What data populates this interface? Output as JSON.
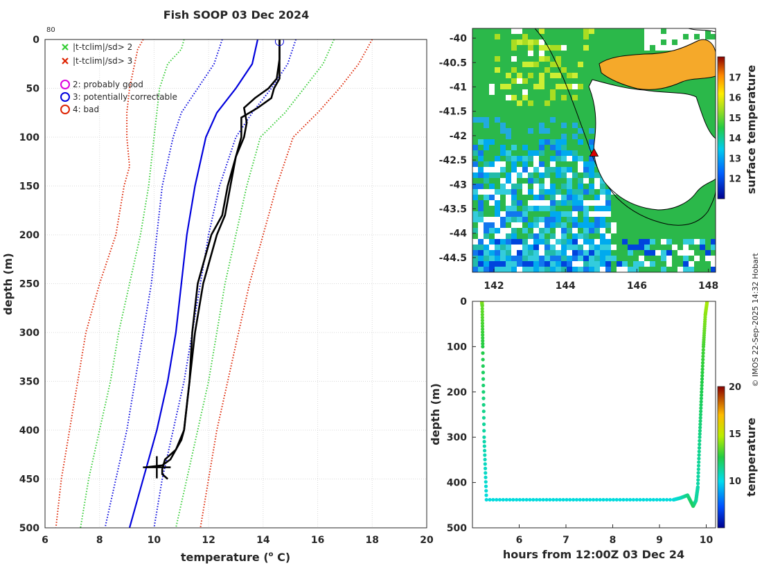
{
  "title": "Fish SOOP 03 Dec 2024",
  "footer": "© IMOS 22-Sep-2025 14:32 Hobart",
  "colors": {
    "green": "#33cc33",
    "red": "#dd2200",
    "blue": "#0000dd",
    "magenta": "#dd00dd",
    "profile": "#000000"
  },
  "chart_data": [
    {
      "id": "profile",
      "type": "line",
      "title": "Fish SOOP 03 Dec 2024",
      "xlabel": "temperature (",
      "xlabel_sup": "o",
      "xlabel_tail": " C)",
      "ylabel": "depth (m)",
      "xlim": [
        6,
        20
      ],
      "ylim": [
        0,
        500
      ],
      "ydir": "reverse",
      "xticks": [
        6,
        8,
        10,
        12,
        14,
        16,
        18,
        20
      ],
      "yticks": [
        0,
        50,
        100,
        150,
        200,
        250,
        300,
        350,
        400,
        450,
        500
      ],
      "grid": true,
      "corner_label": "80",
      "legend": [
        {
          "symbol": "x",
          "color": "green",
          "label": "|t-tclim|/sd> 2"
        },
        {
          "symbol": "x",
          "color": "red",
          "label": "|t-tclim|/sd> 3"
        },
        {
          "symbol": "o",
          "color": "magenta",
          "label": "2: probably good"
        },
        {
          "symbol": "o",
          "color": "blue",
          "label": "3: potentially correctable"
        },
        {
          "symbol": "o",
          "color": "red",
          "label": "4: bad"
        }
      ],
      "series": [
        {
          "name": "clim_mean",
          "style": "solid",
          "color": "blue",
          "depth": [
            0,
            25,
            50,
            75,
            100,
            150,
            200,
            250,
            300,
            350,
            400,
            430,
            450,
            500
          ],
          "temp": [
            13.8,
            13.6,
            13.0,
            12.3,
            11.9,
            11.5,
            11.2,
            11.0,
            10.8,
            10.5,
            10.1,
            9.8,
            9.6,
            9.1
          ]
        },
        {
          "name": "clim_plus1sd",
          "style": "dotted",
          "color": "blue",
          "depth": [
            0,
            25,
            50,
            75,
            100,
            150,
            200,
            250,
            300,
            350,
            400,
            450,
            500
          ],
          "temp": [
            15.2,
            14.9,
            14.3,
            13.6,
            13.0,
            12.4,
            12.0,
            11.7,
            11.4,
            11.1,
            10.7,
            10.3,
            10.0
          ]
        },
        {
          "name": "clim_minus1sd",
          "style": "dotted",
          "color": "blue",
          "depth": [
            0,
            25,
            50,
            75,
            100,
            150,
            200,
            250,
            300,
            350,
            400,
            450,
            500
          ],
          "temp": [
            12.5,
            12.2,
            11.6,
            11.0,
            10.7,
            10.3,
            10.1,
            9.9,
            9.6,
            9.3,
            9.0,
            8.6,
            8.2
          ]
        },
        {
          "name": "clim_plus2sd",
          "style": "dotted",
          "color": "green",
          "depth": [
            0,
            25,
            50,
            75,
            100,
            150,
            200,
            250,
            300,
            350,
            400,
            450,
            500
          ],
          "temp": [
            16.6,
            16.2,
            15.5,
            14.8,
            13.9,
            13.4,
            13.0,
            12.6,
            12.3,
            12.0,
            11.6,
            11.2,
            10.8
          ]
        },
        {
          "name": "clim_minus2sd",
          "style": "dotted",
          "color": "green",
          "depth": [
            0,
            10,
            25,
            50,
            75,
            100,
            150,
            200,
            250,
            300,
            350,
            400,
            450,
            500
          ],
          "temp": [
            11.1,
            11.0,
            10.5,
            10.2,
            10.1,
            10.0,
            9.8,
            9.5,
            9.1,
            8.7,
            8.4,
            8.0,
            7.6,
            7.3
          ]
        },
        {
          "name": "clim_plus3sd",
          "style": "dotted",
          "color": "red",
          "depth": [
            0,
            25,
            50,
            75,
            100,
            150,
            200,
            250,
            300,
            350,
            400,
            450,
            500
          ],
          "temp": [
            18.0,
            17.5,
            16.8,
            16.0,
            15.1,
            14.5,
            14.0,
            13.5,
            13.1,
            12.7,
            12.3,
            12.0,
            11.7
          ]
        },
        {
          "name": "clim_minus3sd",
          "style": "dotted",
          "color": "red",
          "depth": [
            0,
            10,
            50,
            75,
            100,
            130,
            150,
            200,
            250,
            300,
            350,
            400,
            450,
            500
          ],
          "temp": [
            9.6,
            9.4,
            9.1,
            9.0,
            9.0,
            9.1,
            8.9,
            8.6,
            8.0,
            7.5,
            7.2,
            6.9,
            6.6,
            6.4
          ]
        },
        {
          "name": "profile_down",
          "style": "solid",
          "color": "profile",
          "depth": [
            0,
            20,
            40,
            50,
            60,
            70,
            85,
            100,
            120,
            150,
            180,
            200,
            250,
            300,
            350,
            400,
            420,
            430,
            440,
            445,
            450
          ],
          "temp": [
            14.6,
            14.6,
            14.5,
            14.2,
            13.7,
            13.3,
            13.4,
            13.3,
            13.0,
            12.8,
            12.6,
            12.3,
            11.8,
            11.5,
            11.3,
            11.1,
            10.8,
            10.4,
            10.3,
            10.3,
            10.5
          ]
        },
        {
          "name": "profile_up",
          "style": "solid",
          "color": "profile",
          "depth": [
            438,
            436,
            430,
            410,
            400,
            350,
            300,
            250,
            200,
            180,
            150,
            120,
            100,
            80,
            75,
            70,
            60,
            50,
            40,
            20,
            0
          ],
          "temp": [
            9.7,
            10.3,
            10.6,
            11.0,
            11.1,
            11.3,
            11.4,
            11.6,
            12.1,
            12.5,
            12.7,
            13.0,
            13.2,
            13.2,
            13.5,
            13.8,
            14.3,
            14.4,
            14.6,
            14.6,
            14.6
          ]
        }
      ],
      "flag_circle": {
        "temp": 14.6,
        "depth": 2,
        "color": "blue"
      },
      "end_marker": {
        "temp": 10.1,
        "depth": 438
      }
    },
    {
      "id": "map",
      "type": "heatmap",
      "xlim": [
        141.4,
        148.2
      ],
      "ylim": [
        -44.8,
        -39.8
      ],
      "xticks": [
        142,
        144,
        146,
        148
      ],
      "yticks": [
        -40,
        -40.5,
        -41,
        -41.5,
        -42,
        -42.5,
        -43,
        -43.5,
        -44,
        -44.5
      ],
      "colorbar": {
        "label": "surface temperature",
        "range": [
          11,
          18
        ],
        "ticks": [
          12,
          13,
          14,
          15,
          16,
          17
        ]
      },
      "ship_marker": {
        "lon": 144.8,
        "lat": -42.35
      }
    },
    {
      "id": "track",
      "type": "scatter",
      "xlabel": "hours from 12:00Z 03 Dec 24",
      "ylabel": "depth (m)",
      "xlim": [
        5.0,
        10.2
      ],
      "ylim": [
        0,
        500
      ],
      "ydir": "reverse",
      "xticks": [
        6,
        7,
        8,
        9,
        10
      ],
      "yticks": [
        0,
        100,
        200,
        300,
        400,
        500
      ],
      "colorbar": {
        "label": "temperature",
        "range": [
          5,
          20
        ],
        "ticks": [
          10,
          15,
          20
        ]
      },
      "segments": [
        {
          "t": [
            5.2,
            5.21,
            5.22,
            5.25,
            5.3
          ],
          "depth": [
            0,
            10,
            100,
            300,
            438
          ],
          "temp": [
            14.4,
            13.5,
            12.5,
            11.0,
            10.2
          ]
        },
        {
          "t_start": 5.3,
          "t_end": 9.3,
          "n": 56,
          "depth": 438,
          "temp": 10.2
        },
        {
          "t": [
            9.3,
            9.45,
            9.6,
            9.72,
            9.78,
            9.82,
            9.86,
            9.9,
            9.94,
            9.98,
            10.02
          ],
          "depth": [
            438,
            434,
            428,
            452,
            440,
            410,
            300,
            200,
            100,
            30,
            0
          ],
          "temp": [
            10.2,
            10.6,
            11.5,
            12.2,
            11.2,
            11.0,
            11.5,
            12.3,
            13.0,
            14.0,
            14.5
          ]
        }
      ]
    }
  ]
}
